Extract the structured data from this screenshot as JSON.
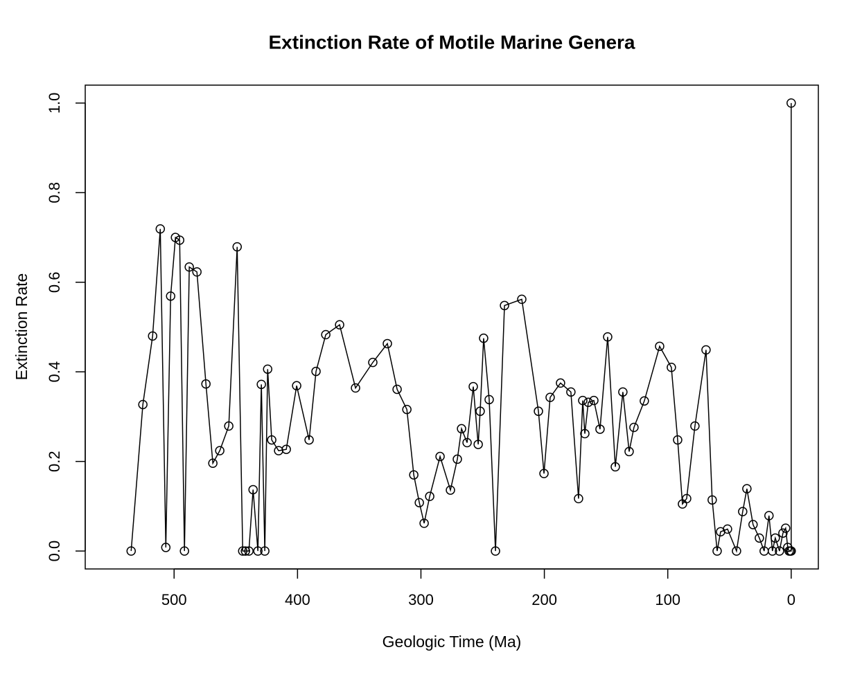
{
  "chart_data": {
    "type": "line",
    "title": "Extinction Rate of Motile Marine Genera",
    "x_label": "Geologic Time (Ma)",
    "y_label": "Extinction Rate",
    "x": [
      534.8,
      525.3,
      517.4,
      511.2,
      506.7,
      502.8,
      498.9,
      495.5,
      491.6,
      487.7,
      481.5,
      474.2,
      468.6,
      463.0,
      455.7,
      448.9,
      444.4,
      442.2,
      439.4,
      436.0,
      432.1,
      429.3,
      426.5,
      424.2,
      420.9,
      415.3,
      409.1,
      400.7,
      390.6,
      385.0,
      377.1,
      365.9,
      353.0,
      339.0,
      327.2,
      319.3,
      311.4,
      305.8,
      301.3,
      297.4,
      292.9,
      284.5,
      276.1,
      270.5,
      267.1,
      262.6,
      257.6,
      253.6,
      252.0,
      249.2,
      244.7,
      239.6,
      232.3,
      218.3,
      204.8,
      200.3,
      195.3,
      186.9,
      178.5,
      172.3,
      168.9,
      167.2,
      164.4,
      159.9,
      154.9,
      148.7,
      142.5,
      136.4,
      131.3,
      127.4,
      119.0,
      106.6,
      97.1,
      92.0,
      88.1,
      84.7,
      78.0,
      69.0,
      64.0,
      60.0,
      57.2,
      51.6,
      44.3,
      39.3,
      35.9,
      30.9,
      25.8,
      21.9,
      18.0,
      15.2,
      12.9,
      9.5,
      6.7,
      4.5,
      2.8,
      1.7,
      0.6,
      0,
      0
    ],
    "values": [
      0,
      0.327,
      0.48,
      0.719,
      0.008,
      0.569,
      0.7,
      0.694,
      0,
      0.634,
      0.623,
      0.373,
      0.196,
      0.224,
      0.279,
      0.679,
      0,
      0,
      0,
      0.137,
      0,
      0.372,
      0,
      0.406,
      0.248,
      0.224,
      0.227,
      0.369,
      0.248,
      0.401,
      0.483,
      0.505,
      0.364,
      0.421,
      0.463,
      0.361,
      0.316,
      0.17,
      0.108,
      0.062,
      0.122,
      0.211,
      0.136,
      0.205,
      0.273,
      0.242,
      0.367,
      0.238,
      0.312,
      0.475,
      0.338,
      0,
      0.548,
      0.562,
      0.312,
      0.173,
      0.343,
      0.375,
      0.355,
      0.117,
      0.336,
      0.262,
      0.332,
      0.336,
      0.272,
      0.478,
      0.188,
      0.355,
      0.222,
      0.276,
      0.335,
      0.457,
      0.41,
      0.248,
      0.105,
      0.117,
      0.279,
      0.449,
      0.114,
      0,
      0.043,
      0.049,
      0,
      0.088,
      0.139,
      0.059,
      0.029,
      0,
      0.079,
      0,
      0.029,
      0,
      0.04,
      0.051,
      0.008,
      0,
      0,
      0,
      1.0
    ],
    "color": "#000000",
    "marker": "circle",
    "xlim": [
      572,
      -22
    ],
    "xticks": [
      500,
      400,
      300,
      200,
      100,
      0
    ],
    "ylim": [
      -0.04,
      1.04
    ],
    "yticks": [
      {
        "value": 0,
        "label": "0.0"
      },
      0.2,
      0.4,
      0.6,
      0.8,
      {
        "value": 1,
        "label": "1.0"
      }
    ]
  }
}
